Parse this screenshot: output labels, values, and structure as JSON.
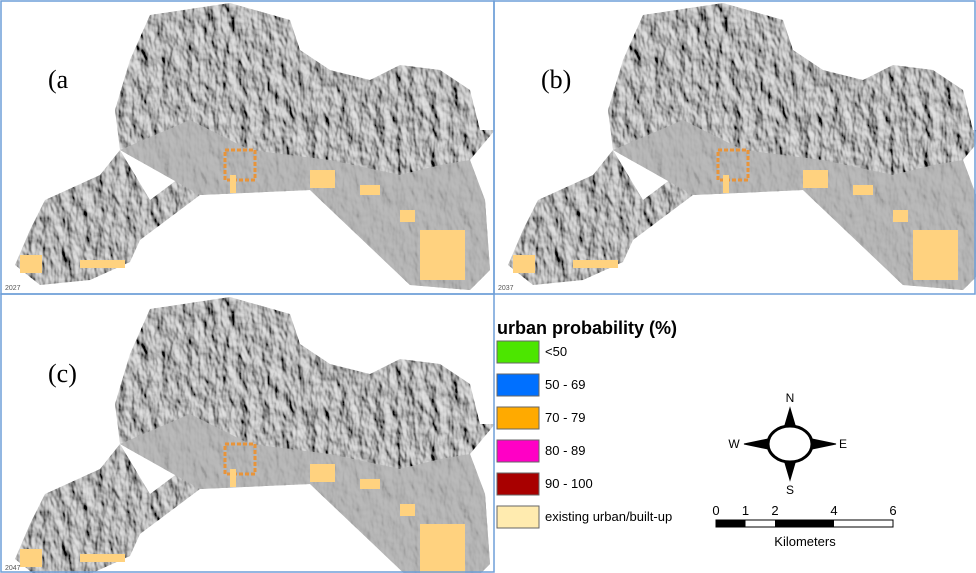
{
  "panels": [
    {
      "label": "(a",
      "year": "2027"
    },
    {
      "label": "(b)",
      "year": "2037"
    },
    {
      "label": "(c)",
      "year": "2047"
    }
  ],
  "legend": {
    "title": "urban probability (%)",
    "items": [
      {
        "name": "<50",
        "color": "#4ce600"
      },
      {
        "name": "50 - 69",
        "color": "#0070ff"
      },
      {
        "name": "70 - 79",
        "color": "#ffaa00"
      },
      {
        "name": "80 - 89",
        "color": "#ff00c5"
      },
      {
        "name": "90 - 100",
        "color": "#a80000"
      },
      {
        "name": "existing urban/built-up",
        "color": "#ffebaf"
      }
    ]
  },
  "compass": {
    "n": "N",
    "s": "S",
    "w": "W",
    "e": "E"
  },
  "scale_bar": {
    "ticks": [
      0,
      1,
      2,
      4,
      6
    ],
    "unit": "Kilometers"
  }
}
